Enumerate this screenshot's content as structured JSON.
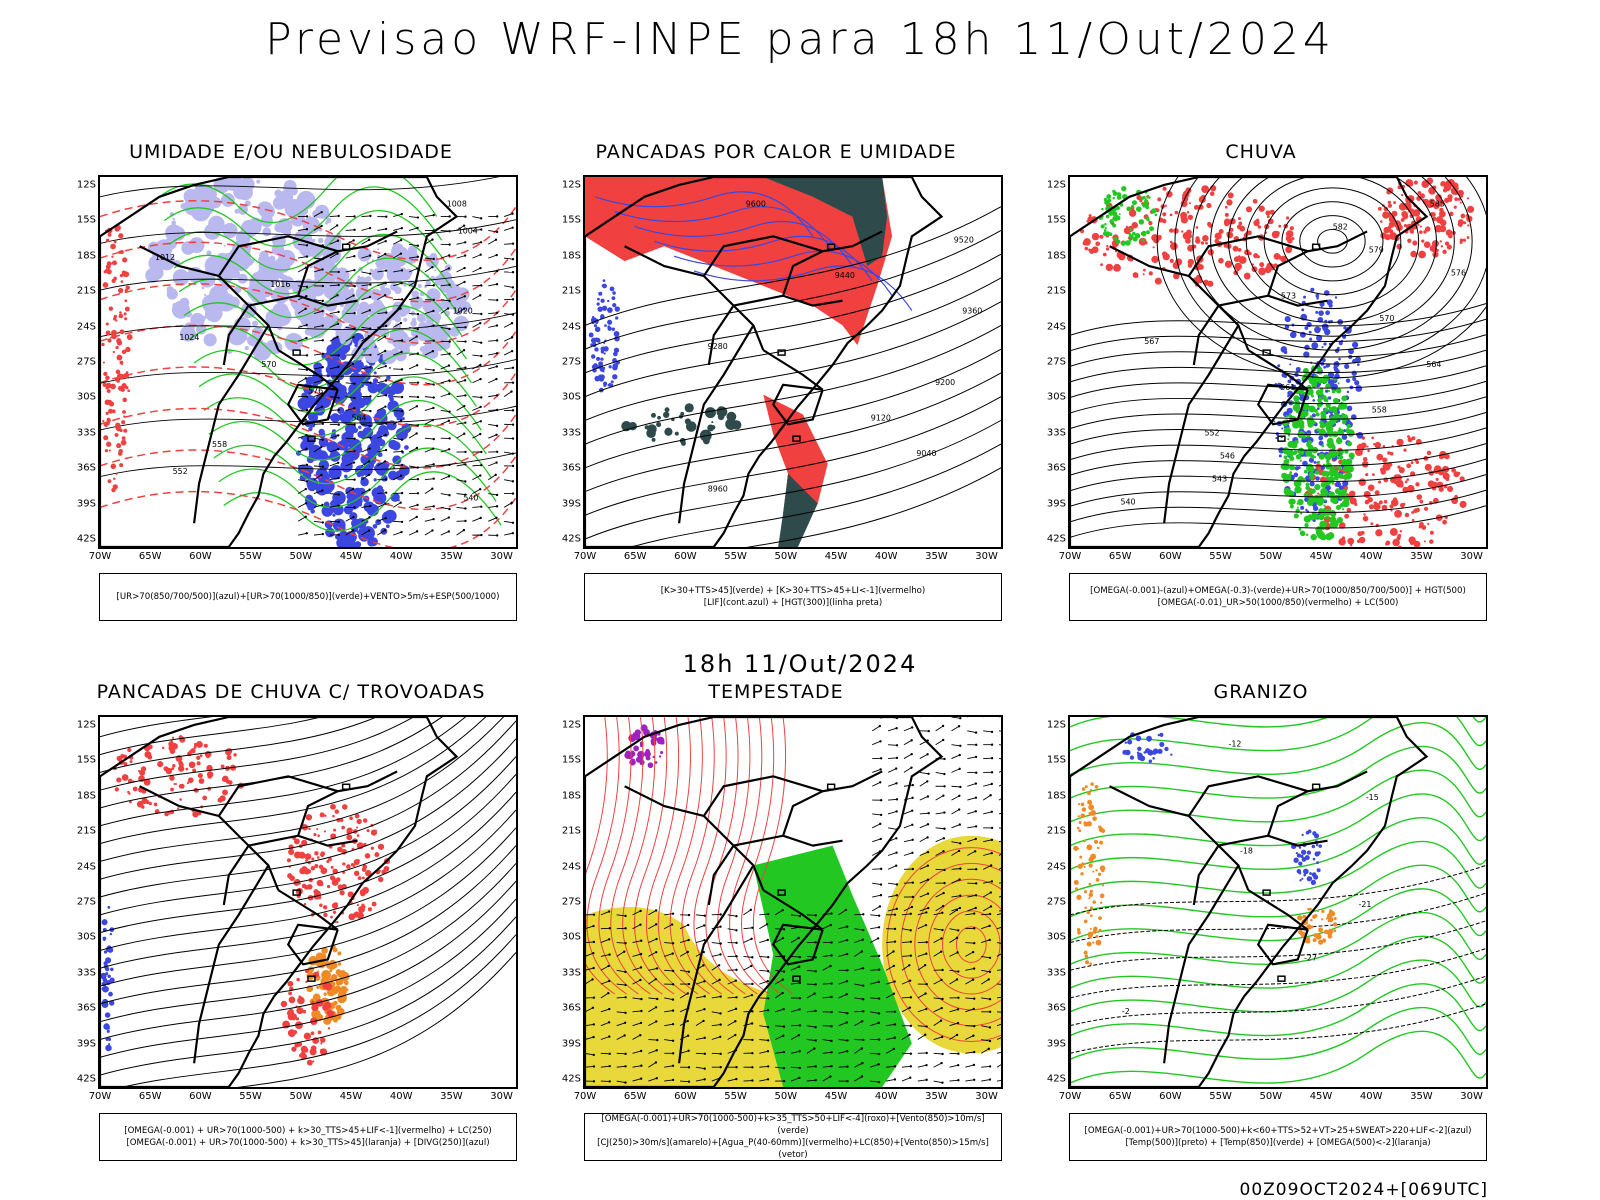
{
  "header": {
    "title": "Previsao WRF-INPE  para 18h 11/Out/2024",
    "mid_title": "18h 11/Out/2024",
    "footer": "00Z09OCT2024+[069UTC]"
  },
  "axes": {
    "lat_labels": [
      "12S",
      "15S",
      "18S",
      "21S",
      "24S",
      "27S",
      "30S",
      "33S",
      "36S",
      "39S",
      "42S"
    ],
    "lon_labels": [
      "70W",
      "65W",
      "60W",
      "55W",
      "50W",
      "45W",
      "40W",
      "35W",
      "30W"
    ]
  },
  "colors": {
    "blue": "#3b47e0",
    "light_blue": "#b9b9f0",
    "green": "#22c722",
    "red": "#f04040",
    "dark_teal": "#2e4a4a",
    "yellow": "#e8d83a",
    "orange": "#f08a25",
    "purple": "#a020c0"
  },
  "panels": [
    {
      "title": "UMIDADE E/OU NEBULOSIDADE",
      "legend": [
        "[UR>70(850/700/500)](azul)+[UR>70(1000/850)](verde)+VENTO>5m/s+ESP(500/1000)"
      ],
      "labels": [
        "1008",
        "1004",
        "1012",
        "1016",
        "1020",
        "1024",
        "570",
        "576",
        "564",
        "558",
        "552",
        "540"
      ]
    },
    {
      "title": "PANCADAS POR CALOR E UMIDADE",
      "legend": [
        "[K>30+TTS>45](verde) + [K>30+TTS>45+LI<-1](vermelho)",
        "[LIF](cont.azul) + [HGT(300)](linha preta)"
      ],
      "labels": [
        "9600",
        "9520",
        "9440",
        "9360",
        "9280",
        "9200",
        "9120",
        "9040",
        "8960"
      ]
    },
    {
      "title": "CHUVA",
      "legend": [
        "[OMEGA(-0.001)-(azul)+OMEGA(-0.3)-(verde)+UR>70(1000/850/700/500)] + HGT(500)",
        "[OMEGA(-0.01)_UR>50(1000/850)(vermelho) + LC(500)"
      ],
      "labels": [
        "585",
        "582",
        "579",
        "576",
        "573",
        "570",
        "567",
        "564",
        "561",
        "558",
        "552",
        "546",
        "543",
        "540"
      ]
    },
    {
      "title": "PANCADAS DE CHUVA C/ TROVOADAS",
      "legend": [
        "[OMEGA(-0.001) + UR>70(1000-500) + k>30_TTS>45+LIF<-1](vermelho) + LC(250)",
        "[OMEGA(-0.001) + UR>70(1000-500) + k>30_TTS>45](laranja) + [DIVG(250)](azul)"
      ],
      "labels": []
    },
    {
      "title": "TEMPESTADE",
      "legend": [
        "[OMEGA(-0.001)+UR>70(1000-500)+k>35_TTS>50+LIF<-4](roxo)+[Vento(850)>10m/s](verde)",
        "[CJ(250)>30m/s](amarelo)+[Agua_P(40-60mm)](vermelho)+LC(850)+[Vento(850)>15m/s](vetor)"
      ],
      "labels": []
    },
    {
      "title": "GRANIZO",
      "legend": [
        "[OMEGA(-0.001)+UR>70(1000-500)+k<60+TTS>52+VT>25+SWEAT>220+LIF<-2](azul)",
        "[Temp(500)](preto) + [Temp(850)](verde) + [OMEGA(500)<-2](laranja)"
      ],
      "labels": [
        "-12",
        "-15",
        "-18",
        "-21",
        "-27",
        "-2"
      ]
    }
  ]
}
